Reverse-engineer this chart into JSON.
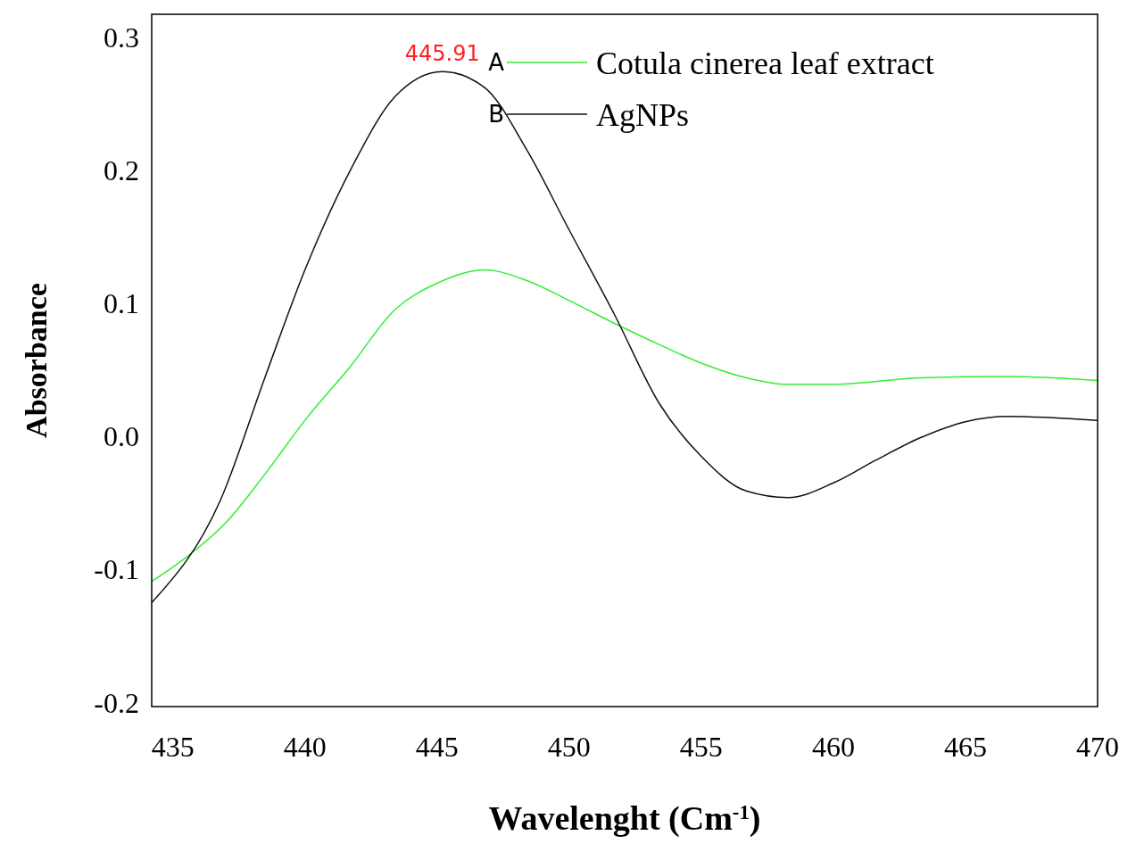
{
  "chart_data": {
    "type": "line",
    "xlabel": "Wavelenght (Cm$^{-1}$)",
    "ylabel": "Absorbance",
    "xlim": [
      434.2,
      470
    ],
    "xticks": [
      435,
      440,
      445,
      450,
      455,
      460,
      465,
      470
    ],
    "ylim": [
      -0.203,
      0.317
    ],
    "yticks": [
      -0.2,
      -0.1,
      {
        "value": 0,
        "label": "0.0"
      },
      0.1,
      0.2,
      0.3
    ],
    "grid": false,
    "legend": "top right",
    "marker": "none",
    "line_style": "solid",
    "annotations": [
      "A",
      "B",
      {
        "text": "445.91",
        "x": 445.2,
        "y": 0.274
      }
    ],
    "series": [
      {
        "name": "Cotula cinerea leaf extract",
        "color": "#33ee33",
        "x": [
          434.2,
          435.5,
          437,
          438.5,
          440,
          441.7,
          443.4,
          445,
          446.8,
          448.4,
          450,
          451.7,
          453.4,
          455,
          456.7,
          458.3,
          460,
          463.3,
          466.6,
          470
        ],
        "values": [
          -0.109,
          -0.091,
          -0.065,
          -0.028,
          0.012,
          0.052,
          0.095,
          0.115,
          0.125,
          0.117,
          0.102,
          0.085,
          0.069,
          0.055,
          0.044,
          0.039,
          0.039,
          0.044,
          0.045,
          0.042
        ]
      },
      {
        "name": "AgNPs",
        "color": "#111111",
        "x": [
          434.2,
          436.8,
          438.5,
          440,
          441.8,
          443.4,
          445.2,
          446.8,
          448.4,
          450,
          451.7,
          453.4,
          455,
          456.7,
          458.3,
          460,
          461.6,
          463.3,
          465,
          466.6,
          470
        ],
        "values": [
          -0.125,
          -0.048,
          0.045,
          0.125,
          0.203,
          0.255,
          0.274,
          0.262,
          0.215,
          0.155,
          0.092,
          0.025,
          -0.015,
          -0.041,
          -0.046,
          -0.035,
          -0.018,
          -0.001,
          0.011,
          0.015,
          0.012
        ]
      }
    ]
  }
}
